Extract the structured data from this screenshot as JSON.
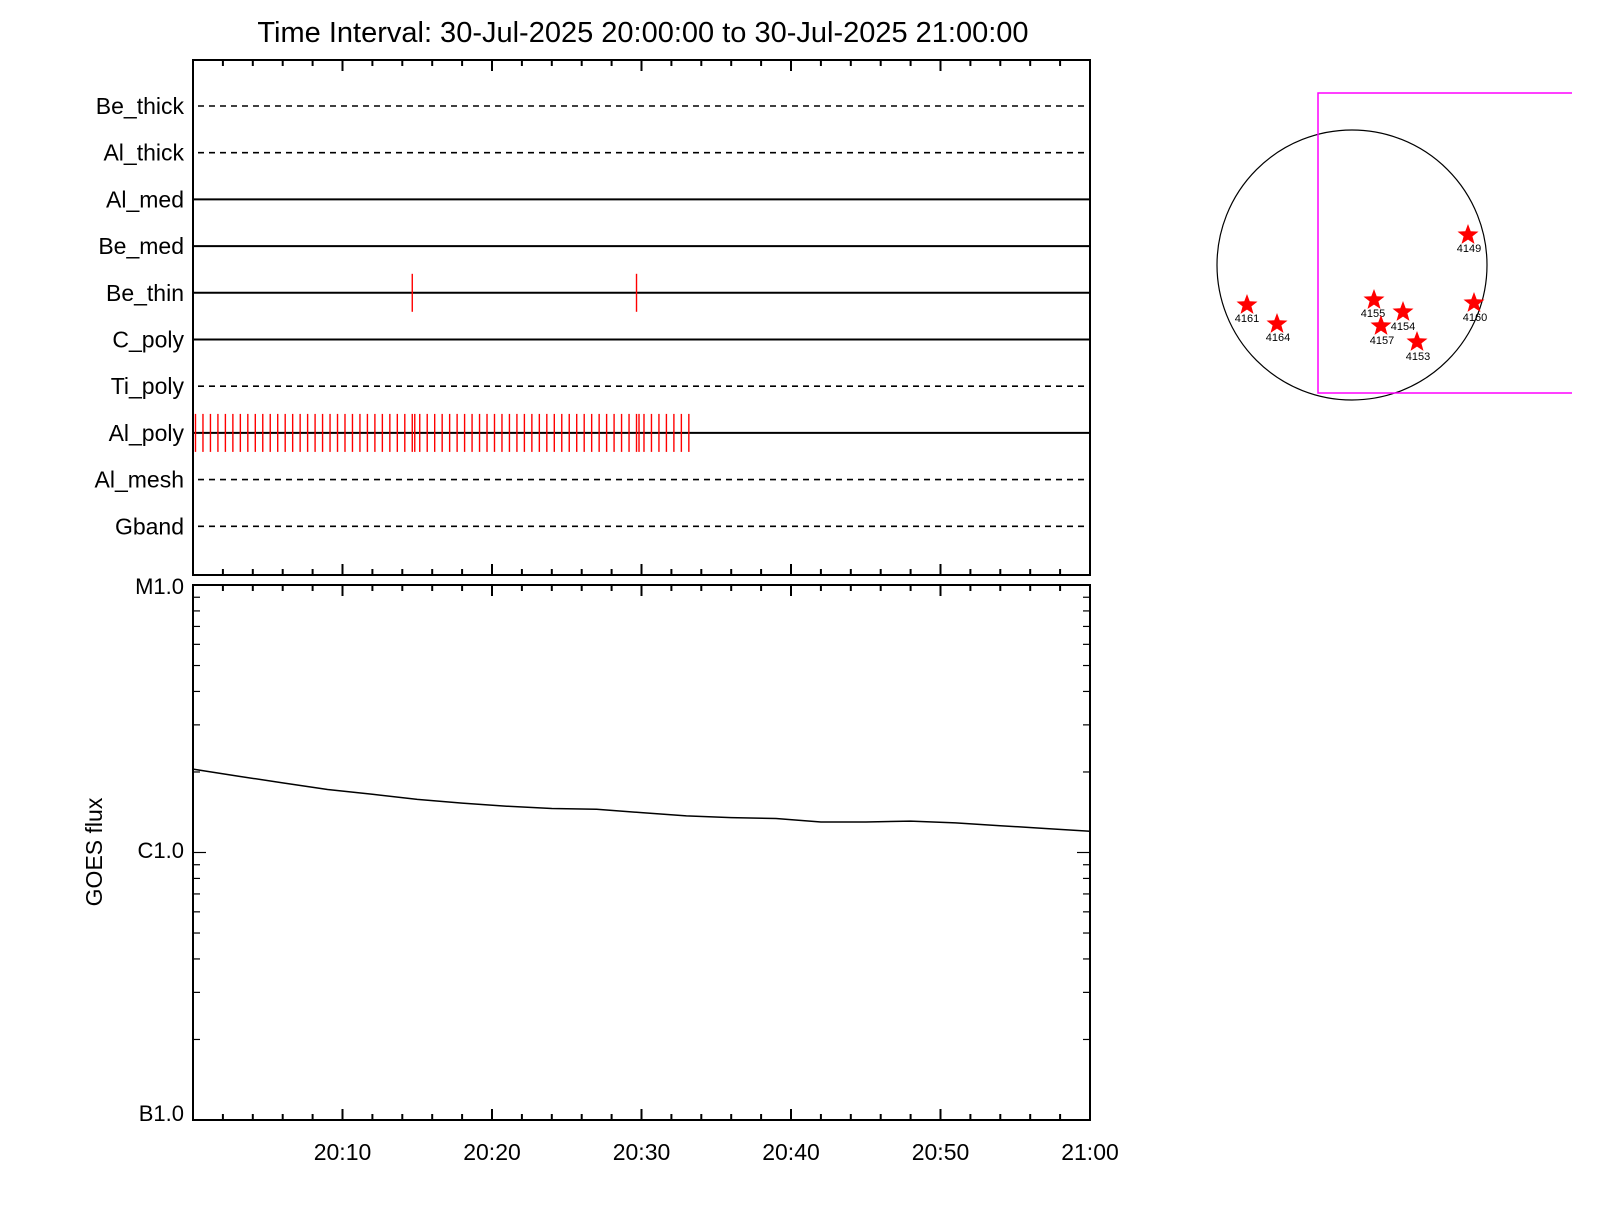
{
  "chart_data": [
    {
      "type": "timeline",
      "title": "Time Interval: 30-Jul-2025 20:00:00 to 30-Jul-2025 21:00:00",
      "x_range": [
        "2025-07-30 20:00:00",
        "2025-07-30 21:00:00"
      ],
      "channels": [
        {
          "name": "Be_thick",
          "style": "dashed",
          "events": []
        },
        {
          "name": "Al_thick",
          "style": "dashed",
          "events": []
        },
        {
          "name": "Al_med",
          "style": "solid",
          "events": []
        },
        {
          "name": "Be_med",
          "style": "solid",
          "events": []
        },
        {
          "name": "Be_thin",
          "style": "solid",
          "events": [
            "20:14:40",
            "20:29:40"
          ]
        },
        {
          "name": "C_poly",
          "style": "solid",
          "events": []
        },
        {
          "name": "Ti_poly",
          "style": "dashed",
          "events": []
        },
        {
          "name": "Al_poly",
          "style": "solid",
          "events_regular": {
            "start": "20:00:10",
            "end": "20:33:10",
            "step_seconds": 30
          },
          "events_extra": [
            "20:14:50",
            "20:29:50"
          ]
        },
        {
          "name": "Al_mesh",
          "style": "dashed",
          "events": []
        },
        {
          "name": "Gband",
          "style": "dashed",
          "events": []
        }
      ],
      "event_color": "#ff0000"
    },
    {
      "type": "line",
      "ylabel": "GOES flux",
      "y_scale": "log",
      "y_ticks": [
        {
          "label": "B1.0",
          "value": 1e-07
        },
        {
          "label": "C1.0",
          "value": 1e-06
        },
        {
          "label": "M1.0",
          "value": 1e-05
        }
      ],
      "ylim": [
        1e-07,
        1e-05
      ],
      "x_ticks": [
        "20:10",
        "20:20",
        "20:30",
        "20:40",
        "20:50",
        "21:00"
      ],
      "series": [
        {
          "x": [
            "20:00",
            "20:03",
            "20:06",
            "20:09",
            "20:12",
            "20:15",
            "20:18",
            "20:21",
            "20:24",
            "20:27",
            "20:30",
            "20:33",
            "20:36",
            "20:39",
            "20:42",
            "20:45",
            "20:48",
            "20:51",
            "20:54",
            "20:57",
            "21:00"
          ],
          "values": [
            2.05e-06,
            1.93e-06,
            1.82e-06,
            1.72e-06,
            1.65e-06,
            1.58e-06,
            1.53e-06,
            1.49e-06,
            1.46e-06,
            1.45e-06,
            1.41e-06,
            1.37e-06,
            1.35e-06,
            1.34e-06,
            1.3e-06,
            1.3e-06,
            1.31e-06,
            1.29e-06,
            1.26e-06,
            1.23e-06,
            1.2e-06
          ]
        }
      ]
    }
  ],
  "sun_map": {
    "disk_color": "#000000",
    "fov_color": "#ff00ff",
    "star_color": "#ff0000",
    "regions": [
      {
        "label": "4149"
      },
      {
        "label": "4161"
      },
      {
        "label": "4164"
      },
      {
        "label": "4155"
      },
      {
        "label": "4154"
      },
      {
        "label": "4157"
      },
      {
        "label": "4153"
      },
      {
        "label": "4160"
      }
    ]
  }
}
